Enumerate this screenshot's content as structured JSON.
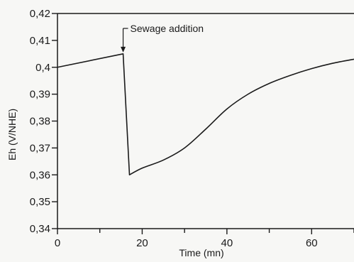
{
  "chart_data": {
    "type": "line",
    "title": "",
    "xlabel": "Time (mn)",
    "ylabel": "Eh (V/NHE)",
    "xlim": [
      0,
      70
    ],
    "ylim": [
      0.34,
      0.42
    ],
    "x_ticks": [
      0,
      20,
      40,
      60
    ],
    "x_tick_labels": [
      "0",
      "20",
      "40",
      "60"
    ],
    "y_ticks": [
      0.34,
      0.35,
      0.36,
      0.37,
      0.38,
      0.39,
      0.4,
      0.41,
      0.42
    ],
    "y_tick_labels": [
      "0,34",
      "0,35",
      "0,36",
      "0,37",
      "0,38",
      "0,39",
      "0,4",
      "0,41",
      "0,42"
    ],
    "grid": false,
    "line_color": "#1a1a1a",
    "series": [
      {
        "x": [
          0,
          15.5,
          17.0,
          20,
          25,
          30,
          35,
          40,
          45,
          50,
          55,
          60,
          65,
          70
        ],
        "y": [
          0.4,
          0.405,
          0.36,
          0.3625,
          0.3655,
          0.37,
          0.377,
          0.3845,
          0.39,
          0.394,
          0.397,
          0.3995,
          0.4015,
          0.403
        ]
      }
    ],
    "annotations": [
      {
        "text": "Sewage addition",
        "x": 15.5,
        "y": 0.405
      }
    ]
  }
}
